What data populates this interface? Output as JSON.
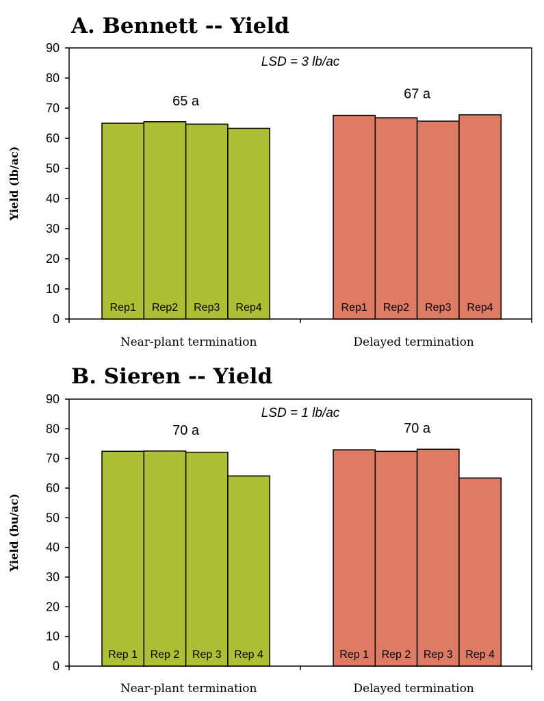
{
  "chart_data": [
    {
      "type": "bar",
      "title": "A. Bennett -- Yield",
      "ylabel": "Yield (lb/ac)",
      "xlabel": "",
      "ylim": [
        0,
        90
      ],
      "yticks": [
        "0",
        "10",
        "20",
        "30",
        "40",
        "50",
        "60",
        "70",
        "80",
        "90"
      ],
      "annotation": "LSD = 3 lb/ac",
      "grid": false,
      "groups": [
        {
          "name": "Near-plant termination",
          "label": "65 a",
          "color": "#adbf35",
          "bars": [
            {
              "label": "Rep1",
              "value": 65.0
            },
            {
              "label": "Rep2",
              "value": 65.5
            },
            {
              "label": "Rep3",
              "value": 64.7
            },
            {
              "label": "Rep4",
              "value": 63.3
            }
          ]
        },
        {
          "name": "Delayed termination",
          "label": "67 a",
          "color": "#de7b64",
          "bars": [
            {
              "label": "Rep1",
              "value": 67.6
            },
            {
              "label": "Rep2",
              "value": 66.8
            },
            {
              "label": "Rep3",
              "value": 65.7
            },
            {
              "label": "Rep4",
              "value": 67.8
            }
          ]
        }
      ]
    },
    {
      "type": "bar",
      "title": "B. Sieren -- Yield",
      "ylabel": "Yield (bu/ac)",
      "xlabel": "",
      "ylim": [
        0,
        90
      ],
      "yticks": [
        "0",
        "10",
        "20",
        "30",
        "40",
        "50",
        "60",
        "70",
        "80",
        "90"
      ],
      "annotation": "LSD = 1 lb/ac",
      "grid": false,
      "groups": [
        {
          "name": "Near-plant termination",
          "label": "70 a",
          "color": "#adbf35",
          "bars": [
            {
              "label": "Rep 1",
              "value": 72.4
            },
            {
              "label": "Rep 2",
              "value": 72.5
            },
            {
              "label": "Rep 3",
              "value": 72.1
            },
            {
              "label": "Rep 4",
              "value": 64.1
            }
          ]
        },
        {
          "name": "Delayed termination",
          "label": "70 a",
          "color": "#de7b64",
          "bars": [
            {
              "label": "Rep 1",
              "value": 72.9
            },
            {
              "label": "Rep 2",
              "value": 72.4
            },
            {
              "label": "Rep 3",
              "value": 73.1
            },
            {
              "label": "Rep 4",
              "value": 63.4
            }
          ]
        }
      ]
    }
  ]
}
